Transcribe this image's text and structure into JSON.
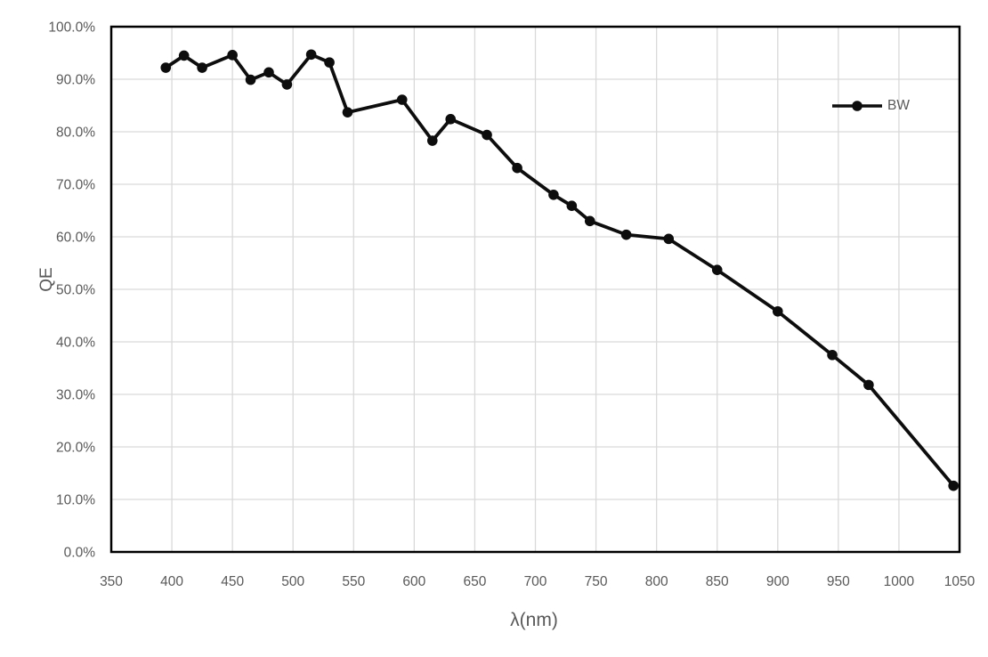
{
  "chart_data": {
    "type": "line",
    "title": "",
    "xlabel": "λ(nm)",
    "ylabel": "QE",
    "xlim": [
      350,
      1050
    ],
    "ylim": [
      0,
      100
    ],
    "x_ticks": [
      350,
      400,
      450,
      500,
      550,
      600,
      650,
      700,
      750,
      800,
      850,
      900,
      950,
      1000,
      1050
    ],
    "y_ticks": [
      0,
      10,
      20,
      30,
      40,
      50,
      60,
      70,
      80,
      90,
      100
    ],
    "y_tick_suffix": "%",
    "y_tick_decimals": 1,
    "grid": true,
    "legend_position": "inside-top-right",
    "colors": {
      "line": "#0d0d0d",
      "marker": "#0d0d0d",
      "gridline": "#d9d9d9",
      "axis_border": "#000000",
      "label_text": "#595959"
    },
    "x": [
      395,
      410,
      425,
      450,
      465,
      480,
      495,
      515,
      530,
      545,
      590,
      615,
      630,
      660,
      685,
      715,
      730,
      745,
      775,
      810,
      850,
      900,
      945,
      975,
      1045
    ],
    "series": [
      {
        "name": "BW",
        "values": [
          92.2,
          94.5,
          92.2,
          94.6,
          89.9,
          91.3,
          89.0,
          94.7,
          93.2,
          83.7,
          86.1,
          78.3,
          82.4,
          79.4,
          73.1,
          68.0,
          65.9,
          63.0,
          60.4,
          59.6,
          53.7,
          45.8,
          37.5,
          31.8,
          12.6
        ]
      }
    ]
  }
}
